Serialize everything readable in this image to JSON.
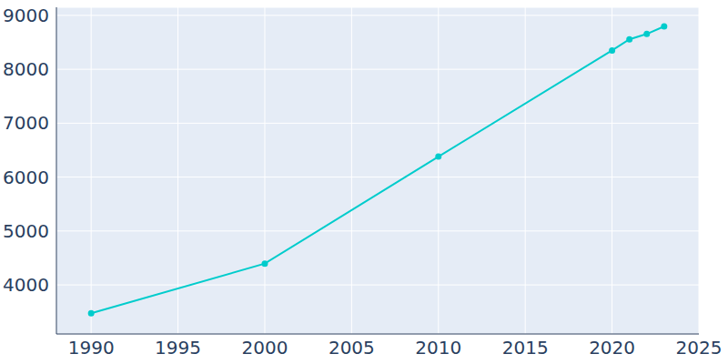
{
  "chart_data": {
    "type": "line",
    "x": [
      1990,
      2000,
      2010,
      2020,
      2021,
      2022,
      2023
    ],
    "values": [
      3475,
      4395,
      6380,
      8350,
      8555,
      8655,
      8795
    ],
    "color": "#00cccc",
    "marker": "circle",
    "xlim": [
      1988,
      2025
    ],
    "xticks": [
      1990,
      1995,
      2000,
      2005,
      2010,
      2015,
      2020,
      2025
    ],
    "ylim": [
      3090,
      9150
    ],
    "yticks": [
      4000,
      5000,
      6000,
      7000,
      8000,
      9000
    ],
    "grid": true
  }
}
